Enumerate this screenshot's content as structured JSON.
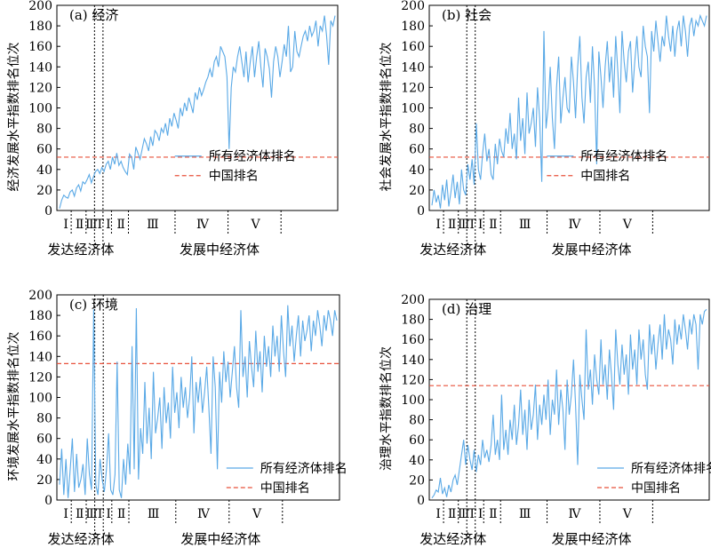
{
  "chart_data": [
    {
      "type": "line",
      "title": "(a) 经济",
      "ylabel": "经济发展水平指数排名位次",
      "ylim": [
        0,
        200
      ],
      "yticks": [
        0,
        20,
        40,
        60,
        80,
        100,
        120,
        140,
        160,
        180,
        200
      ],
      "legend": [
        "所有经济体排名",
        "中国排名"
      ],
      "legend_placement": "center-right",
      "china_rank": 52,
      "group_labels": [
        "发达经济体",
        "发展中经济体"
      ],
      "stage_labels": [
        "Ⅰ",
        "Ⅱ",
        "Ⅲ",
        "T",
        "Ⅰ",
        "Ⅱ",
        "Ⅲ",
        "Ⅳ",
        "Ⅴ"
      ],
      "series": [
        {
          "values": [
            2,
            10,
            15,
            13,
            12,
            18,
            20,
            14,
            22,
            25,
            19,
            28,
            26,
            30,
            35,
            27,
            33,
            38,
            40,
            36,
            42,
            38,
            45,
            48,
            40,
            52,
            45,
            56,
            44,
            48,
            42,
            38,
            35,
            55,
            52,
            40,
            62,
            56,
            50,
            60,
            70,
            65,
            58,
            72,
            63,
            78,
            75,
            68,
            80,
            76,
            85,
            73,
            90,
            82,
            95,
            88,
            80,
            100,
            92,
            105,
            97,
            110,
            103,
            95,
            115,
            108,
            120,
            112,
            118,
            125,
            130,
            138,
            130,
            145,
            150,
            140,
            160,
            155,
            150,
            130,
            60,
            120,
            140,
            135,
            150,
            160,
            145,
            130,
            155,
            125,
            145,
            160,
            130,
            150,
            165,
            140,
            120,
            158,
            150,
            138,
            110,
            145,
            160,
            150,
            130,
            145,
            162,
            150,
            180,
            135,
            140,
            175,
            155,
            150,
            160,
            170,
            175,
            165,
            180,
            170,
            175,
            185,
            160,
            180,
            175,
            190,
            170,
            142,
            185,
            180,
            190
          ]
        }
      ]
    },
    {
      "type": "line",
      "title": "(b) 社会",
      "ylabel": "社会发展水平指数排名位次",
      "ylim": [
        0,
        200
      ],
      "yticks": [
        0,
        20,
        40,
        60,
        80,
        100,
        120,
        140,
        160,
        180,
        200
      ],
      "legend": [
        "所有经济体排名",
        "中国排名"
      ],
      "legend_placement": "center-right",
      "china_rank": 52,
      "group_labels": [
        "发达经济体",
        "发展中经济体"
      ],
      "stage_labels": [
        "Ⅰ",
        "Ⅱ",
        "Ⅲ",
        "T",
        "Ⅰ",
        "Ⅱ",
        "Ⅲ",
        "Ⅳ",
        "Ⅴ"
      ],
      "series": [
        {
          "values": [
            5,
            20,
            8,
            15,
            2,
            25,
            10,
            30,
            4,
            18,
            35,
            12,
            28,
            6,
            40,
            20,
            15,
            45,
            30,
            50,
            25,
            85,
            40,
            30,
            55,
            75,
            48,
            60,
            35,
            30,
            65,
            45,
            70,
            58,
            52,
            80,
            65,
            95,
            60,
            75,
            50,
            110,
            68,
            90,
            55,
            115,
            75,
            85,
            100,
            62,
            120,
            90,
            28,
            175,
            80,
            100,
            140,
            90,
            60,
            120,
            150,
            85,
            110,
            130,
            100,
            95,
            150,
            125,
            90,
            140,
            170,
            110,
            85,
            130,
            145,
            105,
            160,
            120,
            45,
            155,
            130,
            100,
            140,
            165,
            125,
            150,
            110,
            170,
            135,
            95,
            175,
            145,
            125,
            155,
            165,
            115,
            145,
            170,
            140,
            130,
            180,
            160,
            150,
            95,
            175,
            155,
            185,
            165,
            145,
            170,
            160,
            190,
            170,
            155,
            180,
            150,
            175,
            185,
            160,
            190,
            175,
            150,
            180,
            188,
            170,
            185,
            180,
            190,
            185,
            180,
            190
          ]
        }
      ]
    },
    {
      "type": "line",
      "title": "(c) 环境",
      "ylabel": "环境发展水平指数排名位次",
      "ylim": [
        0,
        200
      ],
      "yticks": [
        0,
        20,
        40,
        60,
        80,
        100,
        120,
        140,
        160,
        180,
        200
      ],
      "legend": [
        "所有经济体排名",
        "中国排名"
      ],
      "legend_placement": "bottom-right",
      "china_rank": 133,
      "group_labels": [
        "发达经济体",
        "发展中经济体"
      ],
      "stage_labels": [
        "Ⅰ",
        "Ⅱ",
        "Ⅲ",
        "T",
        "Ⅰ",
        "Ⅱ",
        "Ⅲ",
        "Ⅳ",
        "Ⅴ"
      ],
      "series": [
        {
          "values": [
            15,
            50,
            5,
            40,
            2,
            30,
            60,
            8,
            45,
            12,
            20,
            35,
            5,
            60,
            25,
            10,
            186,
            15,
            5,
            40,
            20,
            8,
            30,
            65,
            10,
            5,
            25,
            135,
            10,
            2,
            40,
            15,
            55,
            25,
            150,
            30,
            187,
            20,
            70,
            45,
            115,
            55,
            90,
            40,
            125,
            65,
            80,
            100,
            50,
            110,
            75,
            95,
            60,
            130,
            85,
            105,
            70,
            120,
            90,
            110,
            80,
            100,
            140,
            65,
            115,
            95,
            120,
            85,
            105,
            130,
            90,
            45,
            140,
            110,
            30,
            125,
            95,
            145,
            115,
            135,
            100,
            125,
            150,
            110,
            90,
            185,
            120,
            140,
            100,
            155,
            130,
            110,
            165,
            125,
            145,
            105,
            160,
            130,
            150,
            120,
            170,
            140,
            160,
            125,
            180,
            145,
            120,
            190,
            150,
            170,
            135,
            160,
            180,
            140,
            175,
            155,
            165,
            180,
            145,
            175,
            160,
            185,
            170,
            150,
            180,
            165,
            185,
            175,
            160,
            185,
            175
          ]
        }
      ]
    },
    {
      "type": "line",
      "title": "(d) 治理",
      "ylabel": "治理水平指数排名位次",
      "ylim": [
        0,
        200
      ],
      "yticks": [
        0,
        20,
        40,
        60,
        80,
        100,
        120,
        140,
        160,
        180,
        200
      ],
      "legend": [
        "所有经济体排名",
        "中国排名"
      ],
      "legend_placement": "bottom-right",
      "china_rank": 114,
      "group_labels": [
        "发达经济体",
        "发展中经济体"
      ],
      "stage_labels": [
        "Ⅰ",
        "Ⅱ",
        "Ⅲ",
        "T",
        "Ⅰ",
        "Ⅱ",
        "Ⅲ",
        "Ⅳ",
        "Ⅴ"
      ],
      "series": [
        {
          "values": [
            2,
            5,
            10,
            8,
            22,
            6,
            12,
            3,
            15,
            8,
            20,
            25,
            15,
            30,
            45,
            60,
            35,
            55,
            40,
            30,
            50,
            28,
            45,
            35,
            60,
            42,
            50,
            38,
            55,
            85,
            45,
            60,
            40,
            105,
            50,
            70,
            45,
            80,
            60,
            95,
            55,
            75,
            110,
            65,
            90,
            50,
            100,
            70,
            85,
            115,
            60,
            95,
            75,
            105,
            80,
            120,
            65,
            100,
            85,
            130,
            75,
            110,
            90,
            50,
            120,
            85,
            105,
            140,
            95,
            35,
            125,
            100,
            80,
            170,
            110,
            130,
            95,
            145,
            120,
            105,
            160,
            115,
            135,
            100,
            150,
            125,
            90,
            170,
            135,
            115,
            155,
            125,
            145,
            105,
            165,
            130,
            150,
            115,
            170,
            140,
            160,
            125,
            110,
            175,
            145,
            165,
            130,
            155,
            175,
            140,
            185,
            150,
            170,
            160,
            135,
            180,
            155,
            175,
            160,
            185,
            170,
            150,
            180,
            165,
            185,
            175,
            130,
            185,
            175,
            188,
            190
          ]
        }
      ]
    }
  ]
}
